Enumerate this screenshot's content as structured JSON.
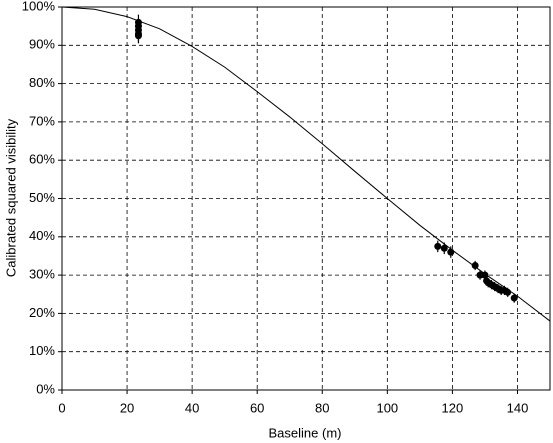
{
  "chart_data": {
    "type": "scatter",
    "x_label": "Baseline (m)",
    "y_label": "Calibrated squared visibility",
    "xlim": [
      0,
      150
    ],
    "xticks": [
      0,
      20,
      40,
      60,
      80,
      100,
      120,
      140
    ],
    "ylim": [
      0,
      100
    ],
    "yticks": [
      {
        "value": 0,
        "label": "0%"
      },
      {
        "value": 10,
        "label": "10%"
      },
      {
        "value": 20,
        "label": "20%"
      },
      {
        "value": 30,
        "label": "30%"
      },
      {
        "value": 40,
        "label": "40%"
      },
      {
        "value": 50,
        "label": "50%"
      },
      {
        "value": 60,
        "label": "60%"
      },
      {
        "value": 70,
        "label": "70%"
      },
      {
        "value": 80,
        "label": "80%"
      },
      {
        "value": 90,
        "label": "90%"
      },
      {
        "value": 100,
        "label": "100%"
      }
    ],
    "grid": true,
    "series": [
      {
        "type": "line",
        "color": "#000000",
        "x": [
          0,
          10,
          20,
          30,
          40,
          50,
          60,
          70,
          80,
          90,
          100,
          110,
          120,
          130,
          140,
          150
        ],
        "values": [
          100,
          99.4,
          97.5,
          94.3,
          89.7,
          84.3,
          77.9,
          71.3,
          64.3,
          57.1,
          50,
          43,
          36.5,
          30.3,
          24.5,
          18
        ]
      },
      {
        "type": "scatter",
        "color": "#000000",
        "x": [
          23.5,
          23.5,
          23.5,
          23.5,
          23.5,
          115.5,
          117.5,
          119.5,
          127,
          128.5,
          130,
          130.5,
          131,
          132,
          133,
          134,
          135,
          136,
          137,
          139
        ],
        "values": [
          96,
          95,
          94,
          93,
          92.5,
          37.5,
          37,
          36,
          32.5,
          30,
          30,
          28.5,
          28,
          27.5,
          27,
          26.5,
          26,
          26,
          25.5,
          24
        ],
        "errors": [
          2,
          2,
          2,
          2,
          2,
          1.5,
          1.5,
          1.5,
          1.2,
          1.2,
          1.2,
          1.2,
          1.2,
          1.2,
          1.2,
          1.2,
          1.2,
          1.2,
          1.2,
          1.2
        ]
      }
    ]
  }
}
